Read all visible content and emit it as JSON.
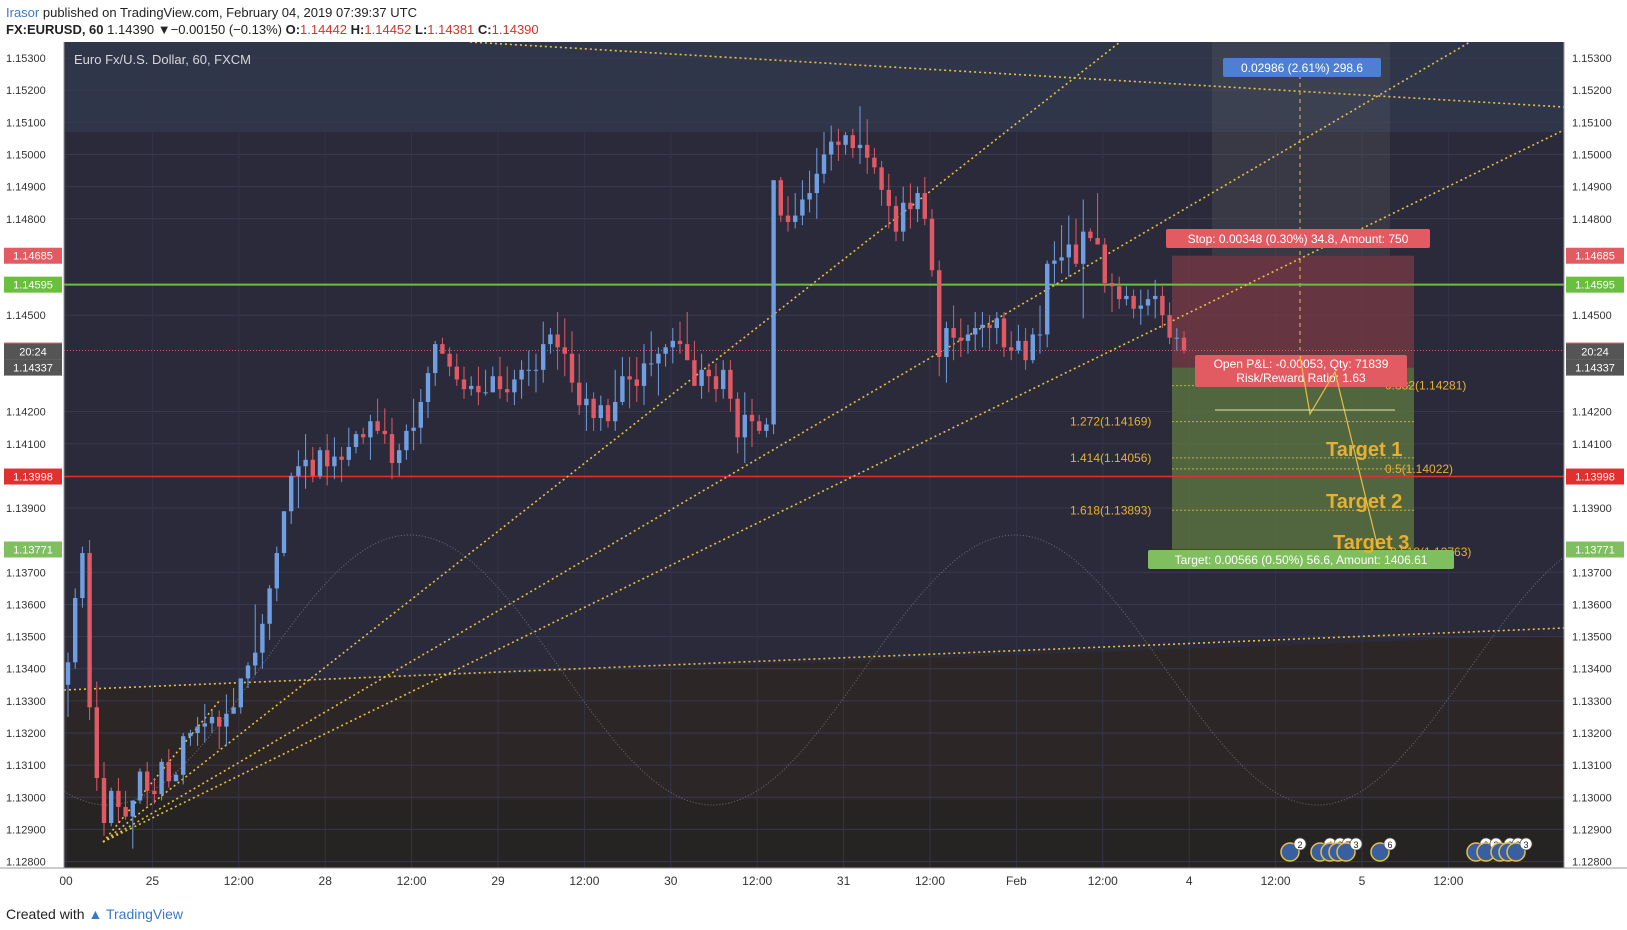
{
  "header": {
    "publisher": "Irasor",
    "published_text": "published on TradingView.com, February 04, 2019 07:39:37 UTC",
    "symbol_line": "FX:EURUSD, 60",
    "last": "1.14390",
    "change": "▼−0.00150 (−0.13%)",
    "o_label": "O:",
    "o": "1.14442",
    "h_label": "H:",
    "h": "1.14452",
    "l_label": "L:",
    "l": "1.14381",
    "c_label": "C:",
    "c": "1.14390"
  },
  "footer": {
    "created_with": "Created with",
    "brand": "TradingView"
  },
  "colors": {
    "bg": "#2a2a3a",
    "up": "#6f9fe0",
    "down": "#e05a65",
    "trend": "#e8c040",
    "green_line": "#6bbf3f",
    "red_line": "#e03030",
    "stop_zone": "#7a3a45",
    "target_zone": "#5f7a40",
    "label_blue": "#4d7fd3",
    "label_red": "#e35b62",
    "label_green": "#7fbf5f"
  },
  "chart_data": {
    "type": "candlestick",
    "title": "Euro Fx/U.S. Dollar, 60, FXCM",
    "ylim": [
      1.1278,
      1.1535
    ],
    "y_ticks": [
      "1.15300",
      "1.15200",
      "1.15100",
      "1.15000",
      "1.14900",
      "1.14800",
      "1.14500",
      "1.14200",
      "1.14100",
      "1.13900",
      "1.13700",
      "1.13600",
      "1.13500",
      "1.13400",
      "1.13300",
      "1.13200",
      "1.13100",
      "1.13000",
      "1.12900",
      "1.12800"
    ],
    "y_tick_values": [
      1.153,
      1.152,
      1.151,
      1.15,
      1.149,
      1.148,
      1.145,
      1.142,
      1.141,
      1.139,
      1.137,
      1.136,
      1.135,
      1.134,
      1.133,
      1.132,
      1.131,
      1.13,
      1.129,
      1.128
    ],
    "x_ticks": [
      {
        "label": "00",
        "bar": 0
      },
      {
        "label": "25",
        "bar": 12
      },
      {
        "label": "12:00",
        "bar": 24
      },
      {
        "label": "28",
        "bar": 36
      },
      {
        "label": "12:00",
        "bar": 48
      },
      {
        "label": "29",
        "bar": 60
      },
      {
        "label": "12:00",
        "bar": 72
      },
      {
        "label": "30",
        "bar": 84
      },
      {
        "label": "12:00",
        "bar": 96
      },
      {
        "label": "31",
        "bar": 108
      },
      {
        "label": "12:00",
        "bar": 120
      },
      {
        "label": "Feb",
        "bar": 132
      },
      {
        "label": "12:00",
        "bar": 144
      },
      {
        "label": "4",
        "bar": 156
      },
      {
        "label": "12:00",
        "bar": 168
      },
      {
        "label": "5",
        "bar": 180
      },
      {
        "label": "12:00",
        "bar": 192
      }
    ],
    "price_levels": [
      {
        "label": "1.14685",
        "value": 1.14685,
        "color": "#e35b62"
      },
      {
        "label": "1.14595",
        "value": 1.14595,
        "color": "#6bbf3f"
      },
      {
        "label": "1.14390",
        "value": 1.1439,
        "color": "#e35b62"
      },
      {
        "label": "20:24",
        "value": 1.14365,
        "color": "#e35b62"
      },
      {
        "label": "1.14337",
        "value": 1.14337,
        "color": "#555555"
      },
      {
        "label": "20:24",
        "value": 1.14365,
        "color": "#555555"
      },
      {
        "label": "1.13998",
        "value": 1.13998,
        "color": "#e03030"
      },
      {
        "label": "1.13771",
        "value": 1.13771,
        "color": "#7fbf5f"
      }
    ],
    "fib_levels": [
      {
        "label": "0.382(1.14281)",
        "value": 1.14281
      },
      {
        "label": "1.272(1.14169)",
        "value": 1.14169
      },
      {
        "label": "1.414(1.14056)",
        "value": 1.14056
      },
      {
        "label": "0.5(1.14022)",
        "value": 1.14022
      },
      {
        "label": "1.618(1.13893)",
        "value": 1.13893
      },
      {
        "label": "0.618(1.13763)",
        "value": 1.13763
      }
    ],
    "annotations": {
      "range_box": "0.02986 (2.61%) 298.6",
      "stop": "Stop: 0.00348 (0.30%) 34.8, Amount: 750",
      "pnl": "Open P&L: -0.00053, Qty: 71839",
      "rr": "Risk/Reward Ratio: 1.63",
      "target": "Target: 0.00566 (0.50%) 56.6, Amount: 1406.61",
      "target1": "Target 1",
      "target2": "Target 2",
      "target3": "Target 3"
    },
    "event_badges": [
      "2",
      "4",
      "2",
      "7",
      "3",
      "6",
      "2",
      "2",
      "2",
      "2",
      "3"
    ],
    "candles": [
      [
        1.1335,
        1.1345,
        1.1325,
        1.1342
      ],
      [
        1.1342,
        1.1365,
        1.134,
        1.1362
      ],
      [
        1.1362,
        1.1378,
        1.1359,
        1.1376
      ],
      [
        1.1376,
        1.138,
        1.1324,
        1.1328
      ],
      [
        1.1328,
        1.1336,
        1.1302,
        1.1306
      ],
      [
        1.1306,
        1.1311,
        1.1288,
        1.1292
      ],
      [
        1.1292,
        1.1303,
        1.1291,
        1.1302
      ],
      [
        1.1302,
        1.1306,
        1.1292,
        1.1297
      ],
      [
        1.1297,
        1.1302,
        1.1293,
        1.1294
      ],
      [
        1.1294,
        1.1298,
        1.1284,
        1.1299
      ],
      [
        1.1299,
        1.1309,
        1.1298,
        1.1308
      ],
      [
        1.1308,
        1.1311,
        1.1297,
        1.1302
      ],
      [
        1.1302,
        1.1306,
        1.1298,
        1.1301
      ],
      [
        1.1301,
        1.1312,
        1.1299,
        1.1311
      ],
      [
        1.1311,
        1.1315,
        1.1303,
        1.1305
      ],
      [
        1.1305,
        1.1308,
        1.1305,
        1.1307
      ],
      [
        1.1307,
        1.132,
        1.1304,
        1.1319
      ],
      [
        1.1319,
        1.1321,
        1.1316,
        1.132
      ],
      [
        1.132,
        1.1325,
        1.1316,
        1.1322
      ],
      [
        1.1322,
        1.1329,
        1.1317,
        1.1323
      ],
      [
        1.1323,
        1.1327,
        1.132,
        1.1325
      ],
      [
        1.1325,
        1.1327,
        1.1315,
        1.1322
      ],
      [
        1.1322,
        1.1332,
        1.1316,
        1.1326
      ],
      [
        1.1326,
        1.1334,
        1.1326,
        1.1328
      ],
      [
        1.1328,
        1.1336,
        1.1326,
        1.1337
      ],
      [
        1.1337,
        1.1342,
        1.1334,
        1.1341
      ],
      [
        1.1341,
        1.136,
        1.1338,
        1.1345
      ],
      [
        1.1345,
        1.1357,
        1.134,
        1.1354
      ],
      [
        1.1354,
        1.1366,
        1.1349,
        1.1365
      ],
      [
        1.1365,
        1.1378,
        1.1361,
        1.1376
      ],
      [
        1.1376,
        1.1389,
        1.1375,
        1.1389
      ],
      [
        1.1389,
        1.1401,
        1.1385,
        1.14
      ],
      [
        1.14,
        1.1408,
        1.139,
        1.1403
      ],
      [
        1.1403,
        1.1413,
        1.1396,
        1.1405
      ],
      [
        1.1405,
        1.1409,
        1.1398,
        1.14
      ],
      [
        1.14,
        1.1409,
        1.1399,
        1.1408
      ],
      [
        1.1408,
        1.1413,
        1.1397,
        1.1403
      ],
      [
        1.1403,
        1.1412,
        1.1399,
        1.1406
      ],
      [
        1.1406,
        1.1409,
        1.1398,
        1.1405
      ],
      [
        1.1405,
        1.1415,
        1.1403,
        1.1409
      ],
      [
        1.1409,
        1.1414,
        1.1407,
        1.1413
      ],
      [
        1.1413,
        1.1415,
        1.141,
        1.1412
      ],
      [
        1.1412,
        1.1419,
        1.1405,
        1.1417
      ],
      [
        1.1417,
        1.1424,
        1.1413,
        1.1414
      ],
      [
        1.1414,
        1.1421,
        1.141,
        1.1413
      ],
      [
        1.1413,
        1.1418,
        1.1399,
        1.1404
      ],
      [
        1.1404,
        1.141,
        1.14,
        1.1408
      ],
      [
        1.1408,
        1.1416,
        1.1405,
        1.1414
      ],
      [
        1.1414,
        1.1424,
        1.1408,
        1.1415
      ],
      [
        1.1415,
        1.1427,
        1.141,
        1.1423
      ],
      [
        1.1423,
        1.1434,
        1.1418,
        1.1432
      ],
      [
        1.1432,
        1.1442,
        1.1428,
        1.1441
      ],
      [
        1.1441,
        1.1443,
        1.1438,
        1.1438
      ],
      [
        1.1438,
        1.144,
        1.1431,
        1.1434
      ],
      [
        1.1434,
        1.1438,
        1.1428,
        1.143
      ],
      [
        1.143,
        1.1434,
        1.1424,
        1.1427
      ],
      [
        1.1427,
        1.1431,
        1.1425,
        1.1428
      ],
      [
        1.1428,
        1.1434,
        1.1422,
        1.1426
      ],
      [
        1.1426,
        1.1433,
        1.1425,
        1.1426
      ],
      [
        1.1426,
        1.1434,
        1.1426,
        1.1431
      ],
      [
        1.1431,
        1.1437,
        1.1424,
        1.1427
      ],
      [
        1.1427,
        1.1434,
        1.1423,
        1.1426
      ],
      [
        1.1426,
        1.1433,
        1.1422,
        1.143
      ],
      [
        1.143,
        1.1436,
        1.1424,
        1.1433
      ],
      [
        1.1433,
        1.1439,
        1.1428,
        1.1433
      ],
      [
        1.1433,
        1.1438,
        1.1426,
        1.1433
      ],
      [
        1.1433,
        1.1448,
        1.1429,
        1.1441
      ],
      [
        1.1441,
        1.1446,
        1.1438,
        1.1444
      ],
      [
        1.1444,
        1.1451,
        1.1433,
        1.144
      ],
      [
        1.144,
        1.1449,
        1.1431,
        1.1438
      ],
      [
        1.1438,
        1.1445,
        1.1426,
        1.1429
      ],
      [
        1.1429,
        1.1438,
        1.1419,
        1.1422
      ],
      [
        1.1422,
        1.1429,
        1.1414,
        1.1424
      ],
      [
        1.1424,
        1.1426,
        1.1414,
        1.1418
      ],
      [
        1.1418,
        1.1425,
        1.1414,
        1.1422
      ],
      [
        1.1422,
        1.1424,
        1.1415,
        1.1417
      ],
      [
        1.1417,
        1.1433,
        1.1414,
        1.1423
      ],
      [
        1.1423,
        1.1437,
        1.1422,
        1.1431
      ],
      [
        1.1431,
        1.1437,
        1.1421,
        1.143
      ],
      [
        1.143,
        1.1437,
        1.1423,
        1.1428
      ],
      [
        1.1428,
        1.1441,
        1.1422,
        1.1435
      ],
      [
        1.1435,
        1.1445,
        1.1431,
        1.1435
      ],
      [
        1.1435,
        1.144,
        1.1425,
        1.1438
      ],
      [
        1.1438,
        1.1441,
        1.1434,
        1.144
      ],
      [
        1.144,
        1.1446,
        1.1435,
        1.1442
      ],
      [
        1.1442,
        1.1448,
        1.1438,
        1.1441
      ],
      [
        1.1441,
        1.1451,
        1.1436,
        1.1436
      ],
      [
        1.1436,
        1.1442,
        1.1428,
        1.1428
      ],
      [
        1.1428,
        1.1438,
        1.1424,
        1.1433
      ],
      [
        1.1433,
        1.1435,
        1.1426,
        1.1431
      ],
      [
        1.1431,
        1.1435,
        1.1423,
        1.1427
      ],
      [
        1.1427,
        1.1436,
        1.1424,
        1.1433
      ],
      [
        1.1433,
        1.1436,
        1.142,
        1.1424
      ],
      [
        1.1424,
        1.1426,
        1.1407,
        1.1412
      ],
      [
        1.1412,
        1.1426,
        1.1404,
        1.1419
      ],
      [
        1.1419,
        1.1424,
        1.1409,
        1.1417
      ],
      [
        1.1417,
        1.1419,
        1.1413,
        1.1414
      ],
      [
        1.1414,
        1.1418,
        1.1412,
        1.1416
      ],
      [
        1.1416,
        1.1492,
        1.1413,
        1.1492
      ],
      [
        1.1492,
        1.1493,
        1.1479,
        1.1481
      ],
      [
        1.1481,
        1.1487,
        1.1476,
        1.1479
      ],
      [
        1.1479,
        1.1488,
        1.1477,
        1.1481
      ],
      [
        1.1481,
        1.1492,
        1.1478,
        1.1486
      ],
      [
        1.1486,
        1.1495,
        1.1482,
        1.1488
      ],
      [
        1.1488,
        1.1502,
        1.148,
        1.1494
      ],
      [
        1.1494,
        1.1507,
        1.1491,
        1.15
      ],
      [
        1.15,
        1.1509,
        1.1495,
        1.1504
      ],
      [
        1.1504,
        1.1508,
        1.1498,
        1.1503
      ],
      [
        1.1503,
        1.1507,
        1.15,
        1.1506
      ],
      [
        1.1506,
        1.1508,
        1.1499,
        1.1502
      ],
      [
        1.1502,
        1.1515,
        1.1497,
        1.1503
      ],
      [
        1.1503,
        1.1511,
        1.1494,
        1.1499
      ],
      [
        1.1499,
        1.1502,
        1.1494,
        1.1496
      ],
      [
        1.1496,
        1.1498,
        1.1484,
        1.1489
      ],
      [
        1.1489,
        1.1494,
        1.1477,
        1.1484
      ],
      [
        1.1484,
        1.1487,
        1.1473,
        1.1476
      ],
      [
        1.1476,
        1.149,
        1.1473,
        1.1485
      ],
      [
        1.1485,
        1.1491,
        1.1477,
        1.1483
      ],
      [
        1.1483,
        1.149,
        1.1479,
        1.1488
      ],
      [
        1.1488,
        1.1493,
        1.1478,
        1.148
      ],
      [
        1.148,
        1.1483,
        1.1462,
        1.1464
      ],
      [
        1.1464,
        1.1467,
        1.1431,
        1.1437
      ],
      [
        1.1437,
        1.1448,
        1.1429,
        1.1446
      ],
      [
        1.1446,
        1.1453,
        1.1436,
        1.1443
      ],
      [
        1.1443,
        1.1449,
        1.1437,
        1.1442
      ],
      [
        1.1442,
        1.1447,
        1.1438,
        1.1444
      ],
      [
        1.1444,
        1.1451,
        1.1439,
        1.1446
      ],
      [
        1.1446,
        1.1451,
        1.144,
        1.1447
      ],
      [
        1.1447,
        1.145,
        1.1439,
        1.1446
      ],
      [
        1.1446,
        1.1451,
        1.1441,
        1.1449
      ],
      [
        1.1449,
        1.1451,
        1.1437,
        1.144
      ],
      [
        1.144,
        1.1445,
        1.1436,
        1.1439
      ],
      [
        1.1439,
        1.1447,
        1.1438,
        1.1442
      ],
      [
        1.1442,
        1.1446,
        1.1433,
        1.1436
      ],
      [
        1.1436,
        1.1446,
        1.1435,
        1.1444
      ],
      [
        1.1444,
        1.1453,
        1.1438,
        1.1444
      ],
      [
        1.1444,
        1.1467,
        1.144,
        1.1466
      ],
      [
        1.1466,
        1.1473,
        1.146,
        1.1467
      ],
      [
        1.1467,
        1.1478,
        1.1463,
        1.1468
      ],
      [
        1.1468,
        1.1481,
        1.1462,
        1.1472
      ],
      [
        1.1472,
        1.148,
        1.1465,
        1.1466
      ],
      [
        1.1466,
        1.1486,
        1.1449,
        1.1476
      ],
      [
        1.1476,
        1.1477,
        1.1473,
        1.1474
      ],
      [
        1.1474,
        1.1488,
        1.1472,
        1.1472
      ],
      [
        1.1472,
        1.1474,
        1.1457,
        1.146
      ],
      [
        1.146,
        1.1463,
        1.1451,
        1.1459
      ],
      [
        1.1459,
        1.1462,
        1.1452,
        1.1455
      ],
      [
        1.1455,
        1.1459,
        1.1453,
        1.1456
      ],
      [
        1.1456,
        1.1458,
        1.1449,
        1.1452
      ],
      [
        1.1452,
        1.1458,
        1.1447,
        1.1453
      ],
      [
        1.1453,
        1.1458,
        1.145,
        1.1455
      ],
      [
        1.1455,
        1.1461,
        1.1449,
        1.1456
      ],
      [
        1.1456,
        1.1459,
        1.1446,
        1.145
      ],
      [
        1.145,
        1.1454,
        1.1441,
        1.1443
      ],
      [
        1.1443,
        1.1446,
        1.1439,
        1.1443
      ],
      [
        1.1443,
        1.1445,
        1.1438,
        1.1439
      ]
    ]
  }
}
